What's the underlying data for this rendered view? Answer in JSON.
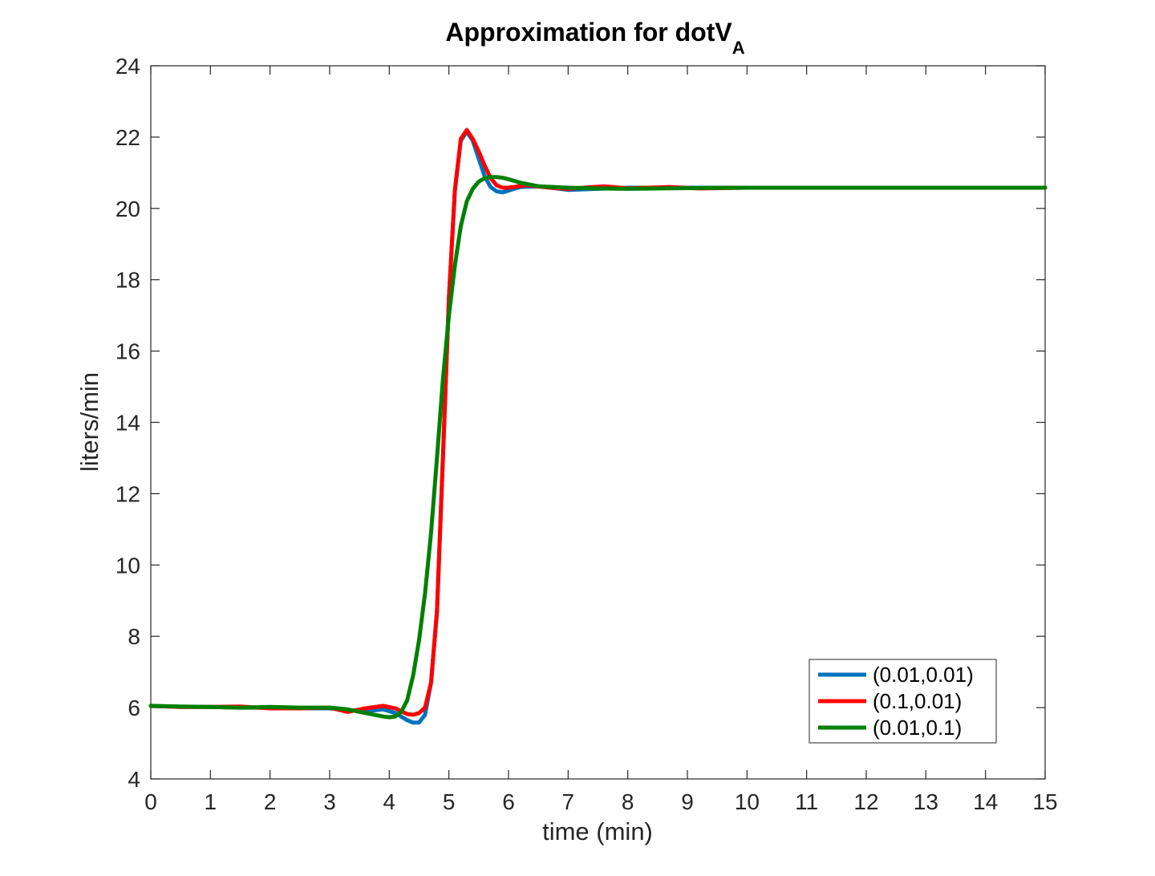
{
  "chart_data": {
    "type": "line",
    "title": "Approximation for dotV",
    "title_subscript": "A",
    "xlabel": "time (min)",
    "ylabel": "liters/min",
    "xlim": [
      0,
      15
    ],
    "ylim": [
      4,
      24
    ],
    "xticks": [
      0,
      1,
      2,
      3,
      4,
      5,
      6,
      7,
      8,
      9,
      10,
      11,
      12,
      13,
      14,
      15
    ],
    "yticks": [
      4,
      6,
      8,
      10,
      12,
      14,
      16,
      18,
      20,
      22,
      24
    ],
    "grid": false,
    "legend_position": "bottom-right",
    "series": [
      {
        "name": "(0.01,0.01)",
        "color": "#0072BD",
        "x": [
          0,
          0.5,
          1,
          1.5,
          2,
          2.5,
          3,
          3.3,
          3.6,
          3.9,
          4.1,
          4.3,
          4.4,
          4.5,
          4.6,
          4.7,
          4.8,
          4.9,
          5.0,
          5.1,
          5.2,
          5.3,
          5.4,
          5.5,
          5.6,
          5.7,
          5.8,
          5.9,
          6.0,
          6.2,
          6.5,
          7.0,
          7.5,
          8.0,
          9.0,
          10,
          11,
          12,
          13,
          14,
          15
        ],
        "values": [
          6.05,
          6.02,
          6.02,
          6.0,
          6.0,
          5.98,
          5.98,
          5.93,
          5.9,
          5.95,
          5.85,
          5.65,
          5.58,
          5.58,
          5.8,
          6.7,
          8.7,
          13.0,
          17.5,
          20.5,
          21.9,
          22.15,
          21.9,
          21.4,
          20.9,
          20.6,
          20.48,
          20.45,
          20.5,
          20.6,
          20.62,
          20.52,
          20.55,
          20.58,
          20.58,
          20.58,
          20.58,
          20.58,
          20.58,
          20.58,
          20.58
        ]
      },
      {
        "name": "(0.1,0.01)",
        "color": "#FF0000",
        "x": [
          0,
          0.5,
          1,
          1.5,
          2,
          2.5,
          3,
          3.3,
          3.6,
          3.9,
          4.1,
          4.3,
          4.4,
          4.5,
          4.6,
          4.7,
          4.8,
          4.9,
          5.0,
          5.1,
          5.2,
          5.3,
          5.4,
          5.5,
          5.6,
          5.7,
          5.8,
          5.9,
          6.0,
          6.3,
          6.7,
          7.0,
          7.6,
          8.0,
          8.7,
          9.2,
          10,
          11,
          12,
          13,
          14,
          15
        ],
        "values": [
          6.05,
          6.02,
          6.02,
          6.03,
          5.98,
          5.98,
          6.0,
          5.88,
          5.98,
          6.05,
          5.98,
          5.82,
          5.8,
          5.85,
          6.0,
          6.7,
          8.7,
          13.0,
          17.5,
          20.5,
          21.95,
          22.2,
          21.95,
          21.6,
          21.2,
          20.85,
          20.65,
          20.58,
          20.58,
          20.65,
          20.58,
          20.55,
          20.62,
          20.56,
          20.6,
          20.56,
          20.58,
          20.58,
          20.58,
          20.58,
          20.58,
          20.58
        ]
      },
      {
        "name": "(0.01,0.1)",
        "color": "#008000",
        "x": [
          0,
          0.5,
          1,
          1.5,
          2,
          2.5,
          3,
          3.3,
          3.6,
          3.9,
          4.0,
          4.1,
          4.2,
          4.3,
          4.4,
          4.5,
          4.6,
          4.7,
          4.8,
          4.9,
          5.0,
          5.1,
          5.2,
          5.3,
          5.4,
          5.5,
          5.6,
          5.7,
          5.8,
          5.9,
          6.0,
          6.2,
          6.5,
          7.0,
          7.5,
          8.0,
          9.0,
          10,
          11,
          12,
          13,
          14,
          15
        ],
        "values": [
          6.05,
          6.03,
          6.02,
          6.0,
          6.02,
          6.0,
          6.0,
          5.95,
          5.85,
          5.75,
          5.73,
          5.75,
          5.88,
          6.2,
          6.9,
          7.9,
          9.2,
          10.9,
          13.0,
          15.2,
          17.0,
          18.4,
          19.5,
          20.2,
          20.55,
          20.75,
          20.85,
          20.88,
          20.88,
          20.86,
          20.82,
          20.72,
          20.62,
          20.58,
          20.56,
          20.55,
          20.57,
          20.58,
          20.58,
          20.58,
          20.58,
          20.58,
          20.58
        ]
      }
    ]
  }
}
